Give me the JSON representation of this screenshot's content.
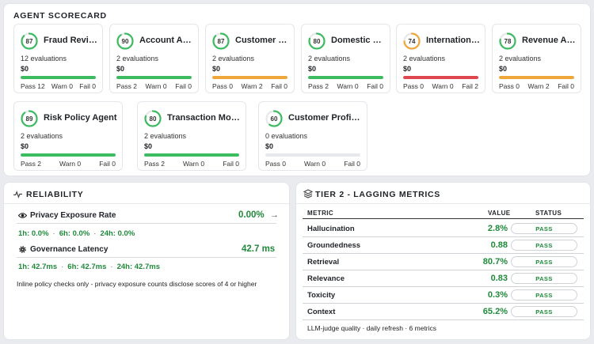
{
  "colors": {
    "green": "#3dbb61",
    "orange": "#f0a73a",
    "red": "#e0464f",
    "track": "#e6e8eb",
    "value_green": "#1f8a3a"
  },
  "scorecard": {
    "title": "AGENT SCORECARD",
    "agents": [
      {
        "score": "87",
        "score_value": 87,
        "ring": "green",
        "name": "Fraud Review Agent",
        "evals": "12 evaluations",
        "cost": "$0",
        "bar": "green",
        "bar_fill": 1.0,
        "pass": "Pass 12",
        "warn": "Warn 0",
        "fail": "Fail 0"
      },
      {
        "score": "90",
        "score_value": 90,
        "ring": "green",
        "name": "Account Agent",
        "evals": "2 evaluations",
        "cost": "$0",
        "bar": "green",
        "bar_fill": 1.0,
        "pass": "Pass 2",
        "warn": "Warn 0",
        "fail": "Fail 0"
      },
      {
        "score": "87",
        "score_value": 87,
        "ring": "green",
        "name": "Customer Experience Agent",
        "evals": "2 evaluations",
        "cost": "$0",
        "bar": "orange",
        "bar_fill": 1.0,
        "pass": "Pass 0",
        "warn": "Warn 2",
        "fail": "Fail 0"
      },
      {
        "score": "80",
        "score_value": 80,
        "ring": "green",
        "name": "Domestic Transfer Agent",
        "evals": "2 evaluations",
        "cost": "$0",
        "bar": "green",
        "bar_fill": 1.0,
        "pass": "Pass 2",
        "warn": "Warn 0",
        "fail": "Fail 0"
      },
      {
        "score": "74",
        "score_value": 74,
        "ring": "orange",
        "name": "International Transfer Agent",
        "evals": "2 evaluations",
        "cost": "$0",
        "bar": "red",
        "bar_fill": 1.0,
        "pass": "Pass 0",
        "warn": "Warn 0",
        "fail": "Fail 2"
      },
      {
        "score": "78",
        "score_value": 78,
        "ring": "green",
        "name": "Revenue Agent",
        "evals": "2 evaluations",
        "cost": "$0",
        "bar": "orange",
        "bar_fill": 1.0,
        "pass": "Pass 0",
        "warn": "Warn 2",
        "fail": "Fail 0"
      },
      {
        "score": "89",
        "score_value": 89,
        "ring": "green",
        "name": "Risk Policy Agent",
        "evals": "2 evaluations",
        "cost": "$0",
        "bar": "green",
        "bar_fill": 1.0,
        "pass": "Pass 2",
        "warn": "Warn 0",
        "fail": "Fail 0"
      },
      {
        "score": "80",
        "score_value": 80,
        "ring": "green",
        "name": "Transaction Monitoring Agent",
        "evals": "2 evaluations",
        "cost": "$0",
        "bar": "green",
        "bar_fill": 1.0,
        "pass": "Pass 2",
        "warn": "Warn 0",
        "fail": "Fail 0"
      },
      {
        "score": "60",
        "score_value": 60,
        "ring": "green",
        "name": "Customer Profile Agent",
        "evals": "0 evaluations",
        "cost": "$0",
        "bar": "track",
        "bar_fill": 0.0,
        "pass": "Pass 0",
        "warn": "Warn 0",
        "fail": "Fail 0"
      }
    ]
  },
  "reliability": {
    "title": "RELIABILITY",
    "privacy": {
      "label": "Privacy Exposure Rate",
      "value": "0.00%",
      "w1": "1h: 0.0%",
      "w6": "6h: 0.0%",
      "w24": "24h: 0.0%"
    },
    "latency": {
      "label": "Governance Latency",
      "value": "42.7 ms",
      "w1": "1h: 42.7ms",
      "w6": "6h: 42.7ms",
      "w24": "24h: 42.7ms"
    },
    "note": "Inline policy checks only - privacy exposure counts disclose scores of 4 or higher"
  },
  "tier2": {
    "title": "TIER 2 - LAGGING METRICS",
    "headers": {
      "metric": "METRIC",
      "value": "VALUE",
      "status": "STATUS"
    },
    "rows": [
      {
        "name": "Hallucination",
        "value": "2.8%",
        "status": "PASS"
      },
      {
        "name": "Groundedness",
        "value": "0.88",
        "status": "PASS"
      },
      {
        "name": "Retrieval",
        "value": "80.7%",
        "status": "PASS"
      },
      {
        "name": "Relevance",
        "value": "0.83",
        "status": "PASS"
      },
      {
        "name": "Toxicity",
        "value": "0.3%",
        "status": "PASS"
      },
      {
        "name": "Context",
        "value": "65.2%",
        "status": "PASS"
      }
    ],
    "footer": {
      "quality": "LLM-judge quality",
      "refresh": "daily refresh",
      "count": "6 metrics"
    }
  }
}
